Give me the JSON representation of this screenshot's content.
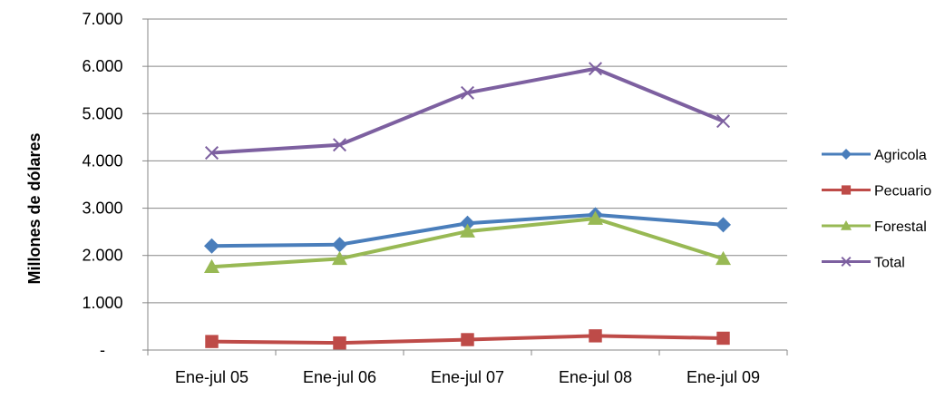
{
  "chart_data": {
    "type": "line",
    "categories": [
      "Ene-jul 05",
      "Ene-jul 06",
      "Ene-jul 07",
      "Ene-jul 08",
      "Ene-jul 09"
    ],
    "ylabel": "Millones de dólares",
    "ylim": [
      0,
      7000
    ],
    "yticks": [
      0,
      1000,
      2000,
      3000,
      4000,
      5000,
      6000,
      7000
    ],
    "ytick_labels": [
      "-",
      "1.000",
      "2.000",
      "3.000",
      "4.000",
      "5.000",
      "6.000",
      "7.000"
    ],
    "grid": true,
    "legend_position": "right",
    "series": [
      {
        "name": "Agricola",
        "color": "#4a7ebb",
        "marker": "diamond",
        "values": [
          2200,
          2230,
          2680,
          2860,
          2650
        ]
      },
      {
        "name": "Pecuario",
        "color": "#be4b48",
        "marker": "square",
        "values": [
          180,
          150,
          220,
          300,
          250
        ]
      },
      {
        "name": "Forestal",
        "color": "#98b954",
        "marker": "triangle",
        "values": [
          1760,
          1930,
          2510,
          2780,
          1930
        ]
      },
      {
        "name": "Total",
        "color": "#7d60a0",
        "marker": "x",
        "values": [
          4170,
          4340,
          5440,
          5950,
          4840
        ]
      }
    ]
  }
}
